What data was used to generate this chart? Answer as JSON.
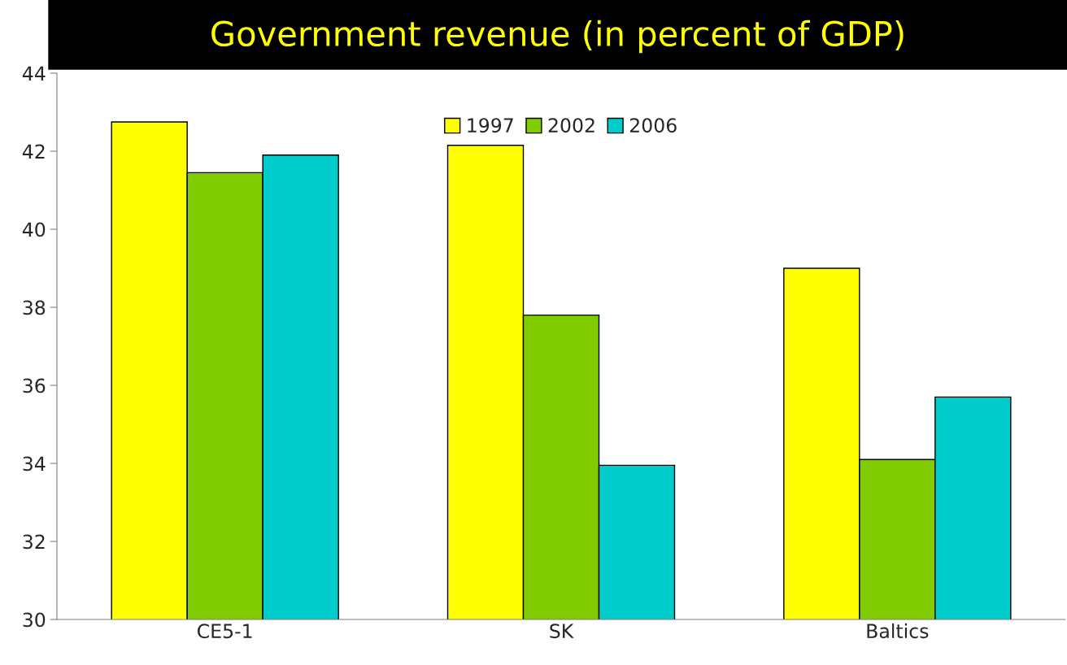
{
  "chart_data": {
    "type": "bar",
    "title": "Government revenue (in percent of GDP)",
    "categories": [
      "CE5-1",
      "SK",
      "Baltics"
    ],
    "series": [
      {
        "name": "1997",
        "color": "#ffff00",
        "values": [
          42.75,
          42.15,
          39.0
        ]
      },
      {
        "name": "2002",
        "color": "#80cc00",
        "values": [
          41.45,
          37.8,
          34.1
        ]
      },
      {
        "name": "2006",
        "color": "#00cccc",
        "values": [
          41.9,
          33.95,
          35.7
        ]
      }
    ],
    "ylim": [
      30,
      44
    ],
    "yticks": [
      30,
      32,
      34,
      36,
      38,
      40,
      42,
      44
    ],
    "grid": false,
    "legend": "top"
  }
}
